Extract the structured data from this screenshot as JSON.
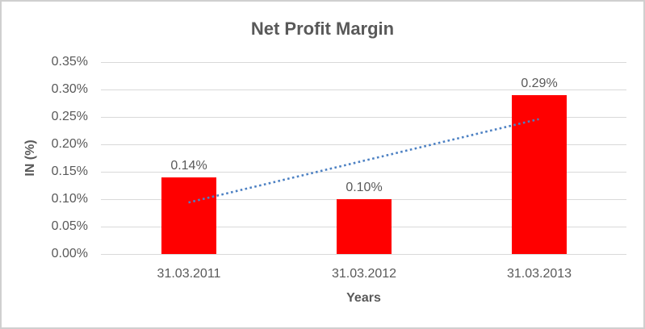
{
  "frame": {
    "background": "#FFFFFF",
    "border_color": "#CFCFCF"
  },
  "chart_data": {
    "type": "bar",
    "title": "Net Profit Margin",
    "xlabel": "Years",
    "ylabel": "IN (%)",
    "categories": [
      "31.03.2011",
      "31.03.2012",
      "31.03.2013"
    ],
    "values": [
      0.14,
      0.1,
      0.29
    ],
    "data_labels": [
      "0.14%",
      "0.10%",
      "0.29%"
    ],
    "ylim": [
      0,
      0.35
    ],
    "ytick_step": 0.05,
    "ytick_labels": [
      "0.00%",
      "0.05%",
      "0.10%",
      "0.15%",
      "0.20%",
      "0.25%",
      "0.30%",
      "0.35%"
    ],
    "grid": true,
    "legend": "none",
    "bar_color": "#FF0000",
    "gridline_color": "#D9D9D9",
    "text_color": "#595959",
    "trendline": {
      "style": "dotted",
      "color": "#4D81C3",
      "start": {
        "category_index": 0,
        "value": 0.094
      },
      "end": {
        "category_index": 2,
        "value": 0.246
      }
    }
  }
}
